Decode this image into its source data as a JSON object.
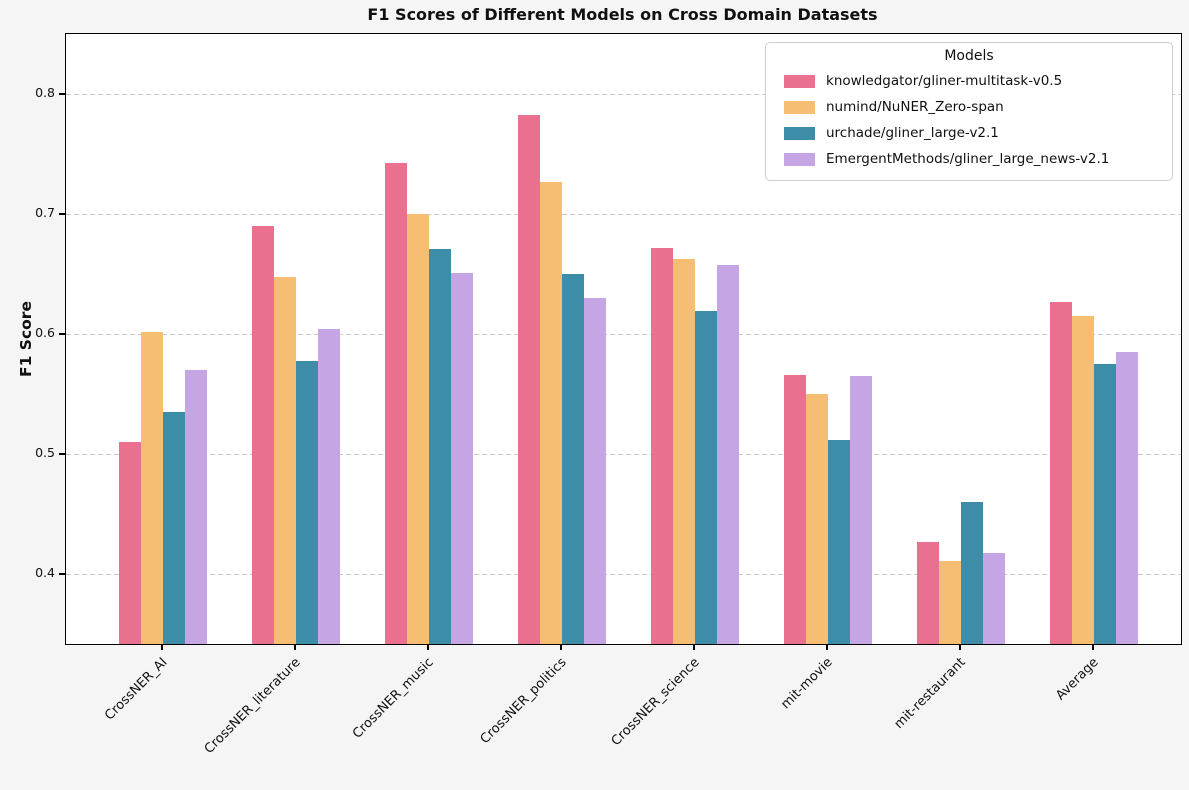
{
  "chart_data": {
    "type": "bar",
    "title": "F1 Scores of Different Models on Cross Domain Datasets",
    "ylabel": "F1 Score",
    "xlabel": "",
    "legend_title": "Models",
    "legend_position": "upper right",
    "grid": "horizontal dashed",
    "background_color": "#f5f5f6",
    "plot_background_color": "#ffffff",
    "gridline_color": "#c9c9c9",
    "ylim": [
      0.342,
      0.85
    ],
    "yticks": [
      0.4,
      0.5,
      0.6,
      0.7,
      0.8
    ],
    "categories": [
      "CrossNER_AI",
      "CrossNER_literature",
      "CrossNER_music",
      "CrossNER_politics",
      "CrossNER_science",
      "mit-movie",
      "mit-restaurant",
      "Average"
    ],
    "series": [
      {
        "name": "knowledgator/gliner-multitask-v0.5",
        "color": "#E9708F",
        "values": [
          0.51,
          0.69,
          0.743,
          0.783,
          0.672,
          0.566,
          0.427,
          0.627
        ]
      },
      {
        "name": "numind/NuNER_Zero-span",
        "color": "#F6BE72",
        "values": [
          0.602,
          0.648,
          0.7,
          0.727,
          0.663,
          0.55,
          0.411,
          0.615
        ]
      },
      {
        "name": "urchade/gliner_large-v2.1",
        "color": "#3E8DA8",
        "values": [
          0.535,
          0.578,
          0.671,
          0.65,
          0.619,
          0.512,
          0.46,
          0.575
        ]
      },
      {
        "name": "EmergentMethods/gliner_large_news-v2.1",
        "color": "#C5A5E3",
        "values": [
          0.57,
          0.604,
          0.651,
          0.63,
          0.658,
          0.565,
          0.418,
          0.585
        ]
      }
    ]
  }
}
